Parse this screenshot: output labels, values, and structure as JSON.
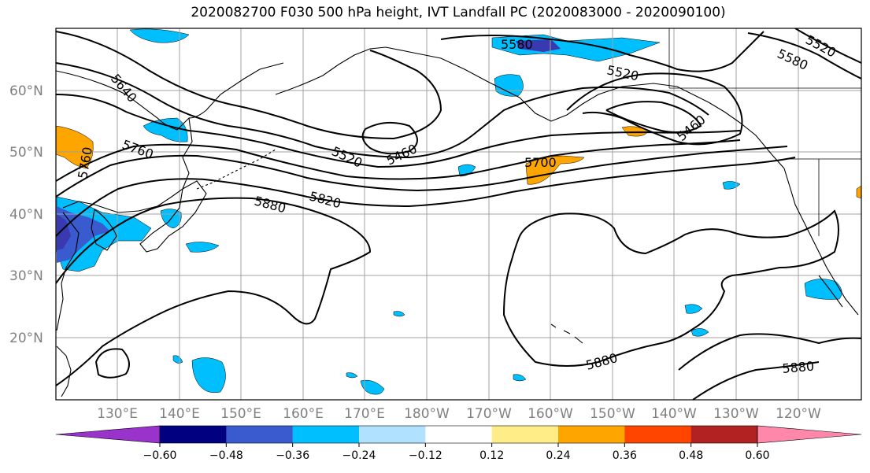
{
  "title": "2020082700 F030 500 hPa height, IVT Landfall PC (2020083000 - 2020090100)",
  "latitude_labels": [
    "60°N",
    "50°N",
    "40°N",
    "30°N",
    "20°N"
  ],
  "longitude_labels": [
    "130°E",
    "140°E",
    "150°E",
    "160°E",
    "170°E",
    "180°W",
    "170°W",
    "160°W",
    "150°W",
    "140°W",
    "130°W",
    "120°W"
  ],
  "contour_labels": [
    "5580",
    "5520",
    "5580",
    "5520",
    "5640",
    "5760",
    "5760",
    "5520",
    "5460",
    "5460",
    "5700",
    "5820",
    "5880",
    "5880",
    "5880"
  ],
  "colorbar": {
    "ticks": [
      "−0.60",
      "−0.48",
      "−0.36",
      "−0.24",
      "−0.12",
      "0.12",
      "0.24",
      "0.36",
      "0.48",
      "0.60"
    ],
    "colors": [
      "#9933cc",
      "#000080",
      "#3a5bcf",
      "#00bfff",
      "#b0e2ff",
      "#ffffff",
      "#ffee88",
      "#ffa500",
      "#ff4500",
      "#b22222",
      "#ff88aa"
    ]
  },
  "field_colors": {
    "strong_negative": "#3a3ab0",
    "mid_negative": "#00bfff",
    "weak_negative": "#b0e2ff",
    "positive": "#ffa500",
    "weak_positive": "#ffee88"
  }
}
